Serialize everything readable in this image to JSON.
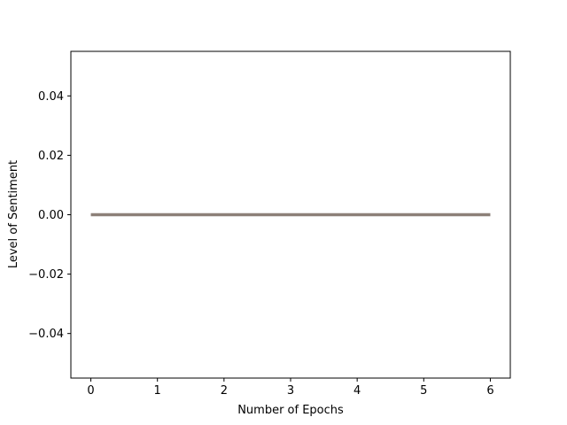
{
  "chart_data": {
    "type": "line",
    "title": "",
    "xlabel": "Number of Epochs",
    "ylabel": "Level of Sentiment",
    "x": [
      0,
      1,
      2,
      3,
      4,
      5,
      6
    ],
    "series": [
      {
        "values": [
          0,
          0,
          0,
          0,
          0,
          0,
          0
        ],
        "color": "#8c8078"
      }
    ],
    "xlim": [
      -0.3,
      6.3
    ],
    "ylim": [
      -0.055,
      0.055
    ],
    "xticks": [
      0,
      1,
      2,
      3,
      4,
      5,
      6
    ],
    "xtick_labels": [
      "0",
      "1",
      "2",
      "3",
      "4",
      "5",
      "6"
    ],
    "yticks": [
      0.04,
      0.02,
      0.0,
      -0.02,
      -0.04
    ],
    "ytick_labels": [
      "0.04",
      "0.02",
      "0.00",
      "−0.02",
      "−0.04"
    ],
    "grid": false,
    "legend": "none"
  }
}
